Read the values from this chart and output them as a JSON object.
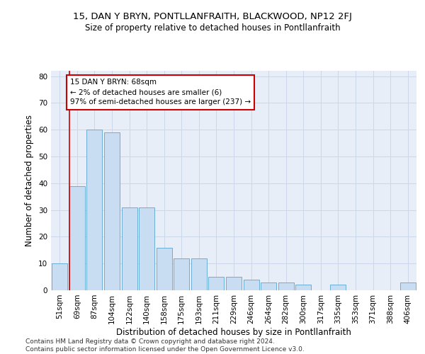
{
  "title1": "15, DAN Y BRYN, PONTLLANFRAITH, BLACKWOOD, NP12 2FJ",
  "title2": "Size of property relative to detached houses in Pontllanfraith",
  "xlabel": "Distribution of detached houses by size in Pontllanfraith",
  "ylabel": "Number of detached properties",
  "categories": [
    "51sqm",
    "69sqm",
    "87sqm",
    "104sqm",
    "122sqm",
    "140sqm",
    "158sqm",
    "175sqm",
    "193sqm",
    "211sqm",
    "229sqm",
    "246sqm",
    "264sqm",
    "282sqm",
    "300sqm",
    "317sqm",
    "335sqm",
    "353sqm",
    "371sqm",
    "388sqm",
    "406sqm"
  ],
  "values": [
    10,
    39,
    60,
    59,
    31,
    31,
    16,
    12,
    12,
    5,
    5,
    4,
    3,
    3,
    2,
    0,
    2,
    0,
    0,
    0,
    3
  ],
  "bar_color": "#c8ddf2",
  "bar_edge_color": "#6aaed6",
  "annotation_line_index": 1,
  "annotation_box_text_line1": "15 DAN Y BRYN: 68sqm",
  "annotation_box_text_line2": "← 2% of detached houses are smaller (6)",
  "annotation_box_text_line3": "97% of semi-detached houses are larger (237) →",
  "annotation_box_color": "#ffffff",
  "annotation_box_edge_color": "#cc0000",
  "annotation_line_color": "#cc0000",
  "ylim": [
    0,
    82
  ],
  "yticks": [
    0,
    10,
    20,
    30,
    40,
    50,
    60,
    70,
    80
  ],
  "grid_color": "#ccd8ea",
  "background_color": "#e8eef8",
  "footer_text": "Contains HM Land Registry data © Crown copyright and database right 2024.\nContains public sector information licensed under the Open Government Licence v3.0.",
  "title1_fontsize": 9.5,
  "title2_fontsize": 8.5,
  "xlabel_fontsize": 8.5,
  "ylabel_fontsize": 8.5,
  "tick_fontsize": 7.5,
  "annotation_fontsize": 7.5,
  "footer_fontsize": 6.5
}
